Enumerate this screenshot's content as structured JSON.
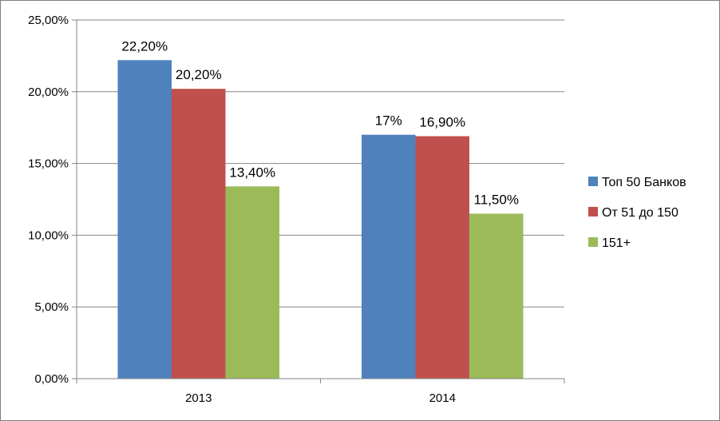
{
  "chart_data": {
    "type": "bar",
    "title": "",
    "xlabel": "",
    "ylabel": "",
    "categories": [
      "2013",
      "2014"
    ],
    "ylim": [
      0,
      25
    ],
    "y_ticks": [
      0,
      5,
      10,
      15,
      20,
      25
    ],
    "y_tick_labels": [
      "0,00%",
      "5,00%",
      "10,00%",
      "15,00%",
      "20,00%",
      "25,00%"
    ],
    "grid": true,
    "legend_position": "right",
    "series": [
      {
        "name": "Топ 50 Банков",
        "color": "#4f81bd",
        "values": [
          22.2,
          17.0
        ],
        "labels": [
          "22,20%",
          "17%"
        ]
      },
      {
        "name": "От 51 до 150",
        "color": "#c0504d",
        "values": [
          20.2,
          16.9
        ],
        "labels": [
          "20,20%",
          "16,90%"
        ]
      },
      {
        "name": "151+",
        "color": "#9bbb59",
        "values": [
          13.4,
          11.5
        ],
        "labels": [
          "13,40%",
          "11,50%"
        ]
      }
    ]
  }
}
